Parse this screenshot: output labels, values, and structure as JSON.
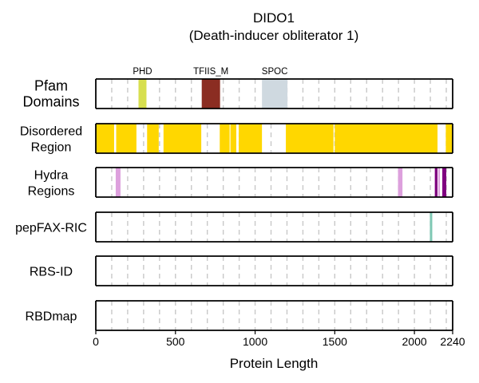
{
  "chart_data": {
    "type": "feature-track",
    "title": "DIDO1",
    "subtitle": "(Death-inducer obliterator 1)",
    "xlabel": "Protein Length",
    "xlim": [
      0,
      2240
    ],
    "xticks": [
      0,
      500,
      1000,
      1500,
      2000,
      2240
    ],
    "grid_dashed_every": 100,
    "rows": [
      {
        "label_lines": [
          "Pfam",
          "Domains"
        ],
        "segments": [
          {
            "name": "PHD",
            "start": 268,
            "end": 318,
            "color": "#d7df4f"
          },
          {
            "name": "TFIIS_M",
            "start": 665,
            "end": 780,
            "color": "#8b2d22"
          },
          {
            "name": "SPOC",
            "start": 1043,
            "end": 1203,
            "color": "#cfd9e0"
          }
        ]
      },
      {
        "label_lines": [
          "Disordered",
          "Region"
        ],
        "segments": [
          {
            "start": 0,
            "end": 115,
            "color": "#ffd700"
          },
          {
            "start": 128,
            "end": 255,
            "color": "#ffd700"
          },
          {
            "start": 322,
            "end": 395,
            "color": "#ffd700"
          },
          {
            "start": 425,
            "end": 662,
            "color": "#ffd700"
          },
          {
            "start": 778,
            "end": 840,
            "color": "#ffd700"
          },
          {
            "start": 845,
            "end": 882,
            "color": "#ffd700"
          },
          {
            "start": 897,
            "end": 1043,
            "color": "#ffd700"
          },
          {
            "start": 1193,
            "end": 1492,
            "color": "#ffd700"
          },
          {
            "start": 1500,
            "end": 2145,
            "color": "#ffd700"
          },
          {
            "start": 2197,
            "end": 2240,
            "color": "#ffd700"
          }
        ]
      },
      {
        "label_lines": [
          "Hydra",
          "Regions"
        ],
        "segments": [
          {
            "start": 125,
            "end": 155,
            "color": "#dda0dd"
          },
          {
            "start": 1897,
            "end": 1925,
            "color": "#dda0dd"
          },
          {
            "start": 2128,
            "end": 2145,
            "color": "#800080"
          },
          {
            "start": 2150,
            "end": 2160,
            "color": "#dda0dd"
          },
          {
            "start": 2175,
            "end": 2200,
            "color": "#800080"
          }
        ]
      },
      {
        "label_lines": [
          "pepFAX-RIC"
        ],
        "segments": [
          {
            "start": 2097,
            "end": 2112,
            "color": "#7fc8b4"
          }
        ]
      },
      {
        "label_lines": [
          "RBS-ID"
        ],
        "segments": []
      },
      {
        "label_lines": [
          "RBDmap"
        ],
        "segments": []
      }
    ]
  }
}
